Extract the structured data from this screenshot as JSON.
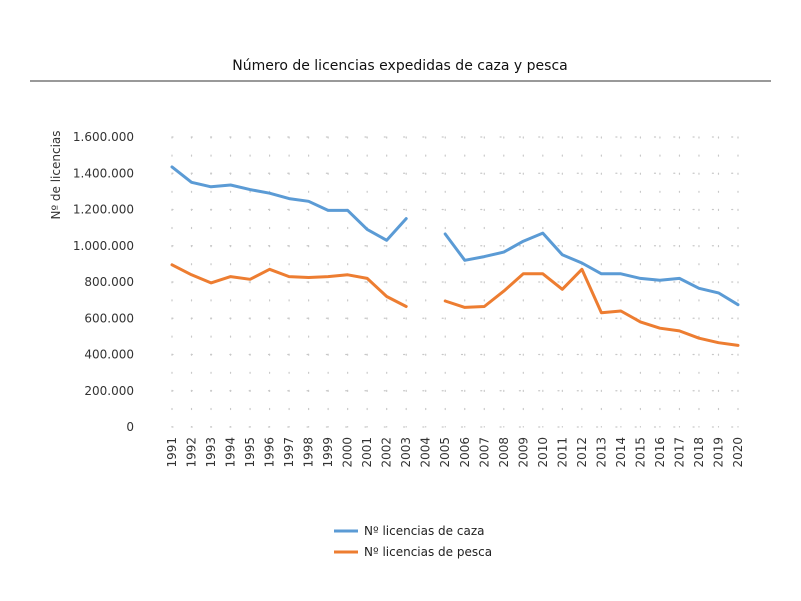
{
  "chart_data": {
    "type": "line",
    "title": "Número de licencias expedidas de caza y pesca",
    "ylabel": "Nº de licencias",
    "xlabel": "",
    "ylim": [
      0,
      1600000
    ],
    "yticks": [
      0,
      200000,
      400000,
      600000,
      800000,
      1000000,
      1200000,
      1400000,
      1600000
    ],
    "ytick_labels": [
      "0",
      "200.000",
      "400.000",
      "600.000",
      "800.000",
      "1.000.000",
      "1.200.000",
      "1.400.000",
      "1.600.000"
    ],
    "categories": [
      "1991",
      "1992",
      "1993",
      "1994",
      "1995",
      "1996",
      "1997",
      "1998",
      "1999",
      "2000",
      "2001",
      "2002",
      "2003",
      "2004",
      "2005",
      "2006",
      "2007",
      "2008",
      "2009",
      "2010",
      "2011",
      "2012",
      "2013",
      "2014",
      "2015",
      "2016",
      "2017",
      "2018",
      "2019",
      "2020"
    ],
    "grid": "dotted",
    "legend_position": "bottom",
    "series": [
      {
        "name": "Nº licencias de caza",
        "color": "#5B9BD5",
        "values": [
          1435000,
          1350000,
          1325000,
          1335000,
          1310000,
          1290000,
          1260000,
          1245000,
          1195000,
          1195000,
          1090000,
          1030000,
          1150000,
          null,
          1065000,
          920000,
          940000,
          965000,
          1025000,
          1070000,
          950000,
          905000,
          845000,
          845000,
          820000,
          810000,
          820000,
          765000,
          740000,
          675000
        ]
      },
      {
        "name": "Nº licencias de pesca",
        "color": "#ED7D31",
        "values": [
          895000,
          840000,
          795000,
          830000,
          815000,
          870000,
          830000,
          825000,
          830000,
          840000,
          820000,
          720000,
          665000,
          null,
          695000,
          660000,
          665000,
          750000,
          845000,
          845000,
          760000,
          870000,
          630000,
          640000,
          580000,
          545000,
          530000,
          490000,
          465000,
          450000
        ]
      }
    ]
  }
}
